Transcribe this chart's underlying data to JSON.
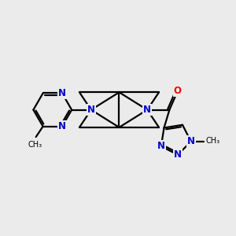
{
  "bg_color": "#ebebeb",
  "bond_color": "#000000",
  "N_color": "#0000cc",
  "O_color": "#ff0000",
  "C_color": "#000000",
  "line_width": 1.6,
  "font_size_atom": 8.5,
  "figsize": [
    3.0,
    3.0
  ],
  "dpi": 100,
  "xlim": [
    0,
    10
  ],
  "ylim": [
    0,
    10
  ]
}
